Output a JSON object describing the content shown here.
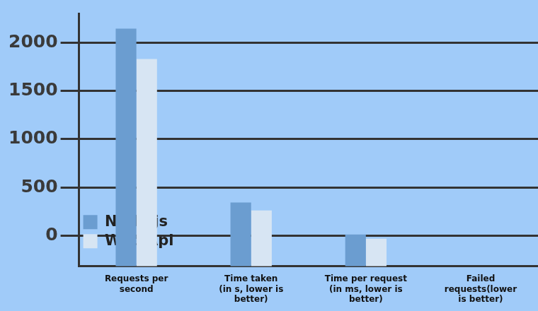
{
  "chart_data": {
    "type": "bar",
    "categories": [
      "Requests per second",
      "Time taken (in s, lower is better)",
      "Time per request (in ms, lower is better)",
      "Failed requests(lower is better)"
    ],
    "series": [
      {
        "name": "Node.js",
        "color": "#6b9dd0",
        "values": [
          2142,
          345,
          15,
          null
        ]
      },
      {
        "name": "Web Api",
        "color": "#d7e5f3",
        "values": [
          1828,
          262,
          -30,
          null
        ]
      }
    ],
    "ylim": [
      -315,
      2300
    ],
    "yticks": [
      0,
      500,
      1000,
      1500,
      2000
    ],
    "grid": true,
    "legend": "top-right",
    "data_labels": false
  }
}
